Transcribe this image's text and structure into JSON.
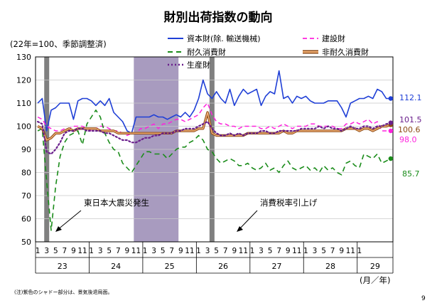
{
  "page": {
    "title": "財別出荷指数の動向",
    "note": "(注)紫色のシャドー部分は、景気後退局面。",
    "page_number": "9"
  },
  "chart_data": {
    "type": "line",
    "title": "財別出荷指数の動向",
    "subtitle": "(22年=100、季節調整済)",
    "ylim": [
      50,
      130
    ],
    "yticks": [
      50,
      60,
      70,
      80,
      90,
      100,
      110,
      120,
      130
    ],
    "x_month_labels": [
      "1",
      "3",
      "5",
      "7",
      "9",
      "11",
      "1",
      "3",
      "5",
      "7",
      "9",
      "11",
      "1",
      "3",
      "5",
      "7",
      "9",
      "11",
      "1",
      "3",
      "5",
      "7",
      "9",
      "11",
      "1",
      "3",
      "5",
      "7",
      "9",
      "11",
      "1",
      "3",
      "5",
      "7",
      "9",
      "11",
      "1"
    ],
    "years": [
      "23",
      "24",
      "25",
      "26",
      "27",
      "28",
      "29"
    ],
    "x_unit": "(月／年)",
    "grid": true,
    "legend": "top",
    "recession_shading": [
      {
        "start": 22,
        "end": 31,
        "color": "#a89bbf"
      }
    ],
    "event_bars": [
      {
        "month_index": 2,
        "label": "東日本大震災発生"
      },
      {
        "month_index": 39,
        "label": "消費税率引上げ"
      }
    ],
    "series": [
      {
        "name": "資本財(除. 輸送機械)",
        "color": "#1f3fd6",
        "dash": "",
        "width": 1.6,
        "end_label": "112.1",
        "values": [
          110,
          112,
          98,
          107,
          108,
          110,
          110,
          110,
          103,
          111,
          112,
          112,
          111,
          109,
          111,
          109,
          112,
          106,
          104,
          102,
          98,
          97,
          104,
          104,
          104,
          104,
          105,
          104,
          104,
          103,
          104,
          105,
          104,
          106,
          104,
          107,
          112,
          120,
          114,
          112,
          115,
          112,
          110,
          116,
          109,
          113,
          116,
          114,
          115,
          116,
          109,
          113,
          115,
          114,
          124,
          112,
          113,
          110,
          113,
          112,
          113,
          111,
          110,
          110,
          110,
          111,
          111,
          111,
          108,
          104,
          110,
          111,
          112,
          112,
          113,
          112,
          116,
          115,
          112,
          112
        ]
      },
      {
        "name": "建設財",
        "color": "#ff22dd",
        "dash": "6 4",
        "width": 1.5,
        "end_label": "98.0",
        "values": [
          104,
          103,
          100,
          99,
          98,
          98,
          99,
          99,
          100,
          100,
          100,
          99,
          98,
          99,
          100,
          100,
          99,
          98,
          98,
          97,
          96,
          97,
          97,
          99,
          99,
          100,
          101,
          99,
          101,
          101,
          102,
          103,
          103,
          102,
          103,
          104,
          105,
          108,
          110,
          105,
          102,
          101,
          101,
          100,
          100,
          99,
          100,
          100,
          100,
          100,
          99,
          99,
          100,
          99,
          100,
          101,
          100,
          99,
          100,
          100,
          100,
          101,
          101,
          100,
          100,
          100,
          100,
          99,
          99,
          101,
          101,
          102,
          101,
          102,
          103,
          101,
          102,
          98,
          98,
          98
        ]
      },
      {
        "name": "耐久消費財",
        "color": "#1a8c1a",
        "dash": "7 5",
        "width": 1.6,
        "end_label": "85.7",
        "values": [
          98,
          99,
          76,
          55,
          74,
          87,
          93,
          96,
          97,
          98,
          92,
          101,
          104,
          107,
          104,
          97,
          93,
          90,
          89,
          84,
          82,
          80,
          83,
          86,
          89,
          89,
          88,
          88,
          88,
          86,
          88,
          90,
          91,
          91,
          93,
          94,
          96,
          94,
          90,
          89,
          86,
          84,
          85,
          86,
          85,
          83,
          83,
          84,
          82,
          81,
          82,
          84,
          81,
          82,
          80,
          83,
          85,
          82,
          81,
          82,
          83,
          81,
          82,
          80,
          83,
          81,
          82,
          80,
          79,
          84,
          85,
          83,
          82,
          88,
          87,
          86,
          88,
          84,
          85,
          86
        ]
      },
      {
        "name": "非耐久消費財",
        "color": "#8c4a14",
        "dash": "",
        "width": 2.2,
        "end_label": "100.6",
        "values": [
          100,
          99,
          94,
          95,
          97,
          97,
          98,
          99,
          98,
          99,
          99,
          99,
          99,
          99,
          98,
          98,
          98,
          98,
          97,
          97,
          97,
          97,
          97,
          97,
          97,
          97,
          97,
          97,
          97,
          97,
          97,
          98,
          98,
          98,
          98,
          98,
          99,
          99,
          106,
          97,
          96,
          96,
          96,
          96,
          96,
          96,
          96,
          97,
          97,
          97,
          97,
          97,
          97,
          97,
          97,
          98,
          97,
          97,
          98,
          98,
          98,
          98,
          98,
          98,
          98,
          98,
          98,
          98,
          98,
          99,
          99,
          99,
          98,
          99,
          99,
          98,
          99,
          100,
          100,
          100.6
        ]
      },
      {
        "name": "生産財",
        "color": "#6a1f8c",
        "dash": "2 3",
        "width": 2.2,
        "end_label": "101.5",
        "values": [
          102,
          101,
          89,
          88,
          90,
          93,
          97,
          98,
          98,
          99,
          99,
          98,
          98,
          98,
          98,
          97,
          97,
          96,
          95,
          94,
          94,
          93,
          93,
          94,
          95,
          95,
          96,
          96,
          97,
          97,
          97,
          98,
          98,
          99,
          99,
          99,
          100,
          101,
          102,
          99,
          97,
          96,
          96,
          97,
          96,
          97,
          96,
          97,
          97,
          97,
          98,
          98,
          97,
          97,
          98,
          98,
          98,
          98,
          98,
          99,
          99,
          99,
          99,
          100,
          99,
          100,
          99,
          99,
          98,
          99,
          100,
          99,
          99,
          100,
          100,
          99,
          100,
          100,
          101,
          101.5
        ]
      }
    ]
  }
}
